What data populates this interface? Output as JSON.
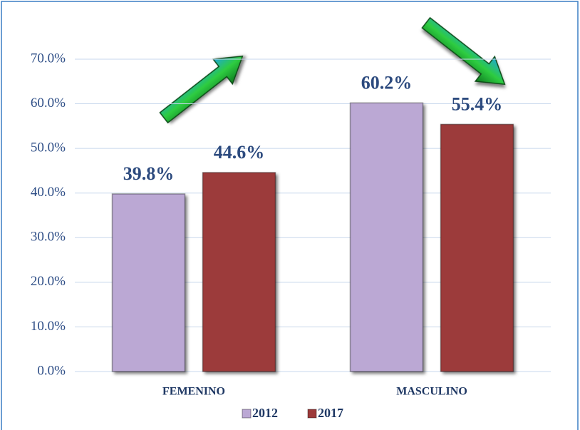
{
  "chart_data": {
    "type": "bar",
    "categories": [
      "FEMENINO",
      "MASCULINO"
    ],
    "series": [
      {
        "name": "2012",
        "color": "#bba8d4",
        "values": [
          39.8,
          60.2
        ],
        "value_labels": [
          "39.8%",
          "60.2%"
        ]
      },
      {
        "name": "2017",
        "color": "#9c3a3a",
        "values": [
          44.6,
          55.4
        ],
        "value_labels": [
          "44.6%",
          "55.4%"
        ]
      }
    ],
    "ylim": [
      0,
      80
    ],
    "yticks": [
      {
        "value": 0,
        "label": "0.0%"
      },
      {
        "value": 10,
        "label": "10.0%"
      },
      {
        "value": 20,
        "label": "20.0%"
      },
      {
        "value": 30,
        "label": "30.0%"
      },
      {
        "value": 40,
        "label": "40.0%"
      },
      {
        "value": 50,
        "label": "50.0%"
      },
      {
        "value": 60,
        "label": "60.0%"
      },
      {
        "value": 70,
        "label": "70.0%"
      }
    ],
    "grid": true,
    "legend": "bottom"
  }
}
